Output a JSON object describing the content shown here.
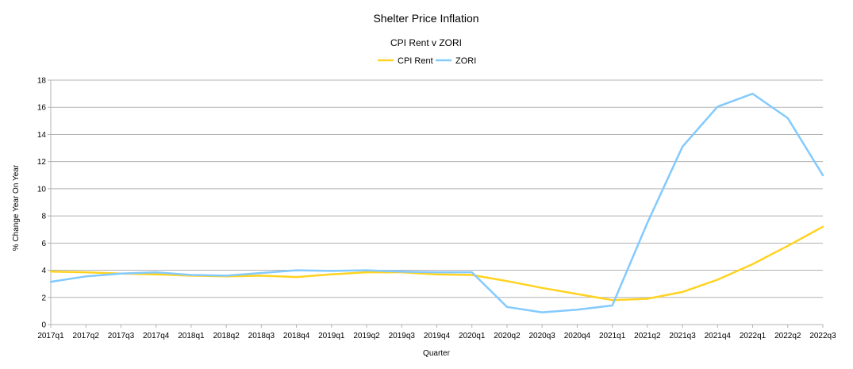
{
  "chart_data": {
    "type": "line",
    "title": "Shelter Price Inflation",
    "subtitle": "CPI Rent v ZORI",
    "xlabel": "Quarter",
    "ylabel": "% Change Year On Year",
    "ylim": [
      0,
      18
    ],
    "yticks": [
      0,
      2,
      4,
      6,
      8,
      10,
      12,
      14,
      16,
      18
    ],
    "grid": true,
    "legend_position": "top-center",
    "categories": [
      "2017q1",
      "2017q2",
      "2017q3",
      "2017q4",
      "2018q1",
      "2018q2",
      "2018q3",
      "2018q4",
      "2019q1",
      "2019q2",
      "2019q3",
      "2019q4",
      "2020q1",
      "2020q2",
      "2020q3",
      "2020q4",
      "2021q1",
      "2021q2",
      "2021q3",
      "2021q4",
      "2022q1",
      "2022q2",
      "2022q3"
    ],
    "series": [
      {
        "name": "CPI Rent",
        "color": "#ffd320",
        "values": [
          3.9,
          3.85,
          3.75,
          3.7,
          3.6,
          3.55,
          3.6,
          3.5,
          3.7,
          3.85,
          3.85,
          3.7,
          3.65,
          3.2,
          2.7,
          2.25,
          1.8,
          1.9,
          2.4,
          3.3,
          4.45,
          5.8,
          7.2
        ]
      },
      {
        "name": "ZORI",
        "color": "#83caff",
        "values": [
          3.15,
          3.55,
          3.75,
          3.85,
          3.65,
          3.6,
          3.8,
          4.0,
          3.95,
          4.0,
          3.9,
          3.85,
          3.85,
          1.3,
          0.9,
          1.1,
          1.4,
          7.5,
          13.1,
          16.05,
          17.0,
          15.2,
          11.0
        ]
      }
    ]
  }
}
